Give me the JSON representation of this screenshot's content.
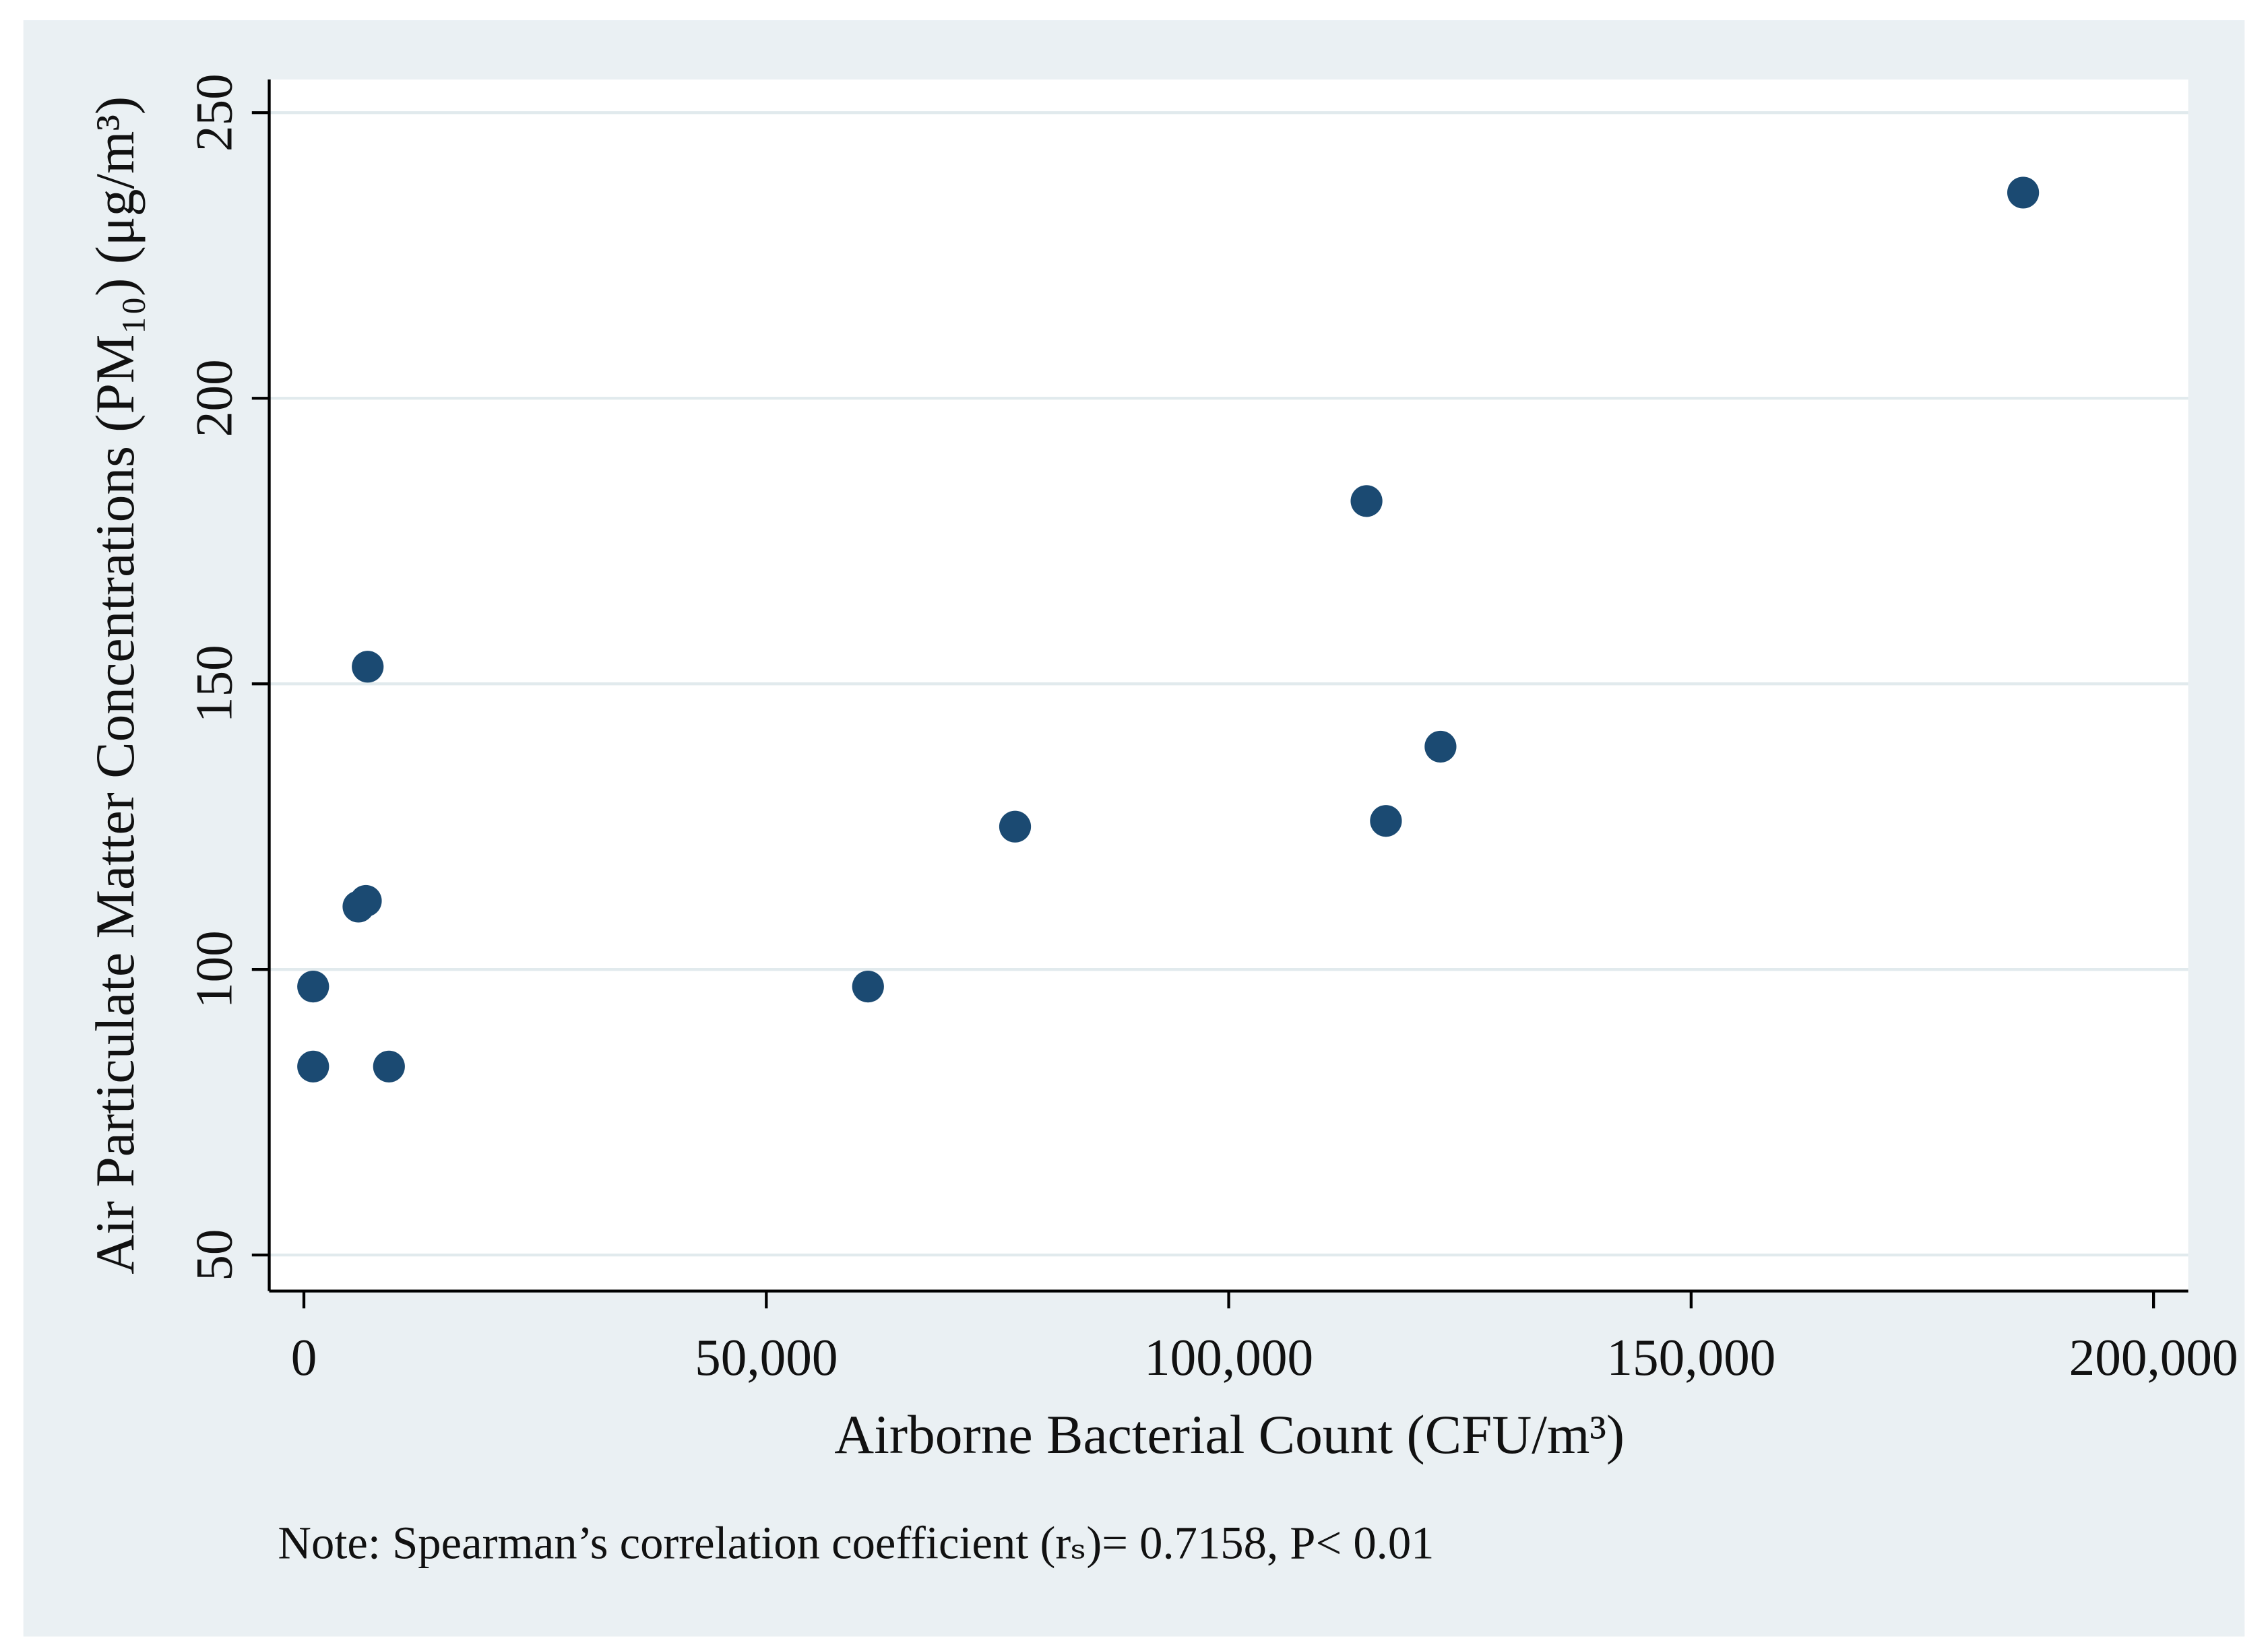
{
  "chart_data": {
    "type": "scatter",
    "x_label": "Airborne Bacterial Count (CFU/m³)",
    "y_label": "Air Particulate Matter Concentrations (PM₁₀) (μg/m³)",
    "note": "Note: Spearman’s correlation coefficient (rₛ)= 0.7158, P< 0.01",
    "x": [
      1000,
      1000,
      9200,
      5900,
      6700,
      6900,
      61000,
      76900,
      114900,
      117000,
      122900,
      185900
    ],
    "values": [
      83,
      97,
      83,
      111,
      112,
      153,
      97,
      125,
      182,
      126,
      139,
      236
    ],
    "color": "#1b4a72",
    "xlim": [
      -3750,
      203750
    ],
    "ylim": [
      43.7,
      255.8
    ],
    "xticks": [
      0,
      {
        "value": 50000,
        "label": "50,000"
      },
      {
        "value": 100000,
        "label": "100,000"
      },
      {
        "value": 150000,
        "label": "150,000"
      },
      {
        "value": 200000,
        "label": "200,000"
      }
    ],
    "yticks": [
      50,
      100,
      150,
      200,
      250
    ],
    "grid": true
  }
}
